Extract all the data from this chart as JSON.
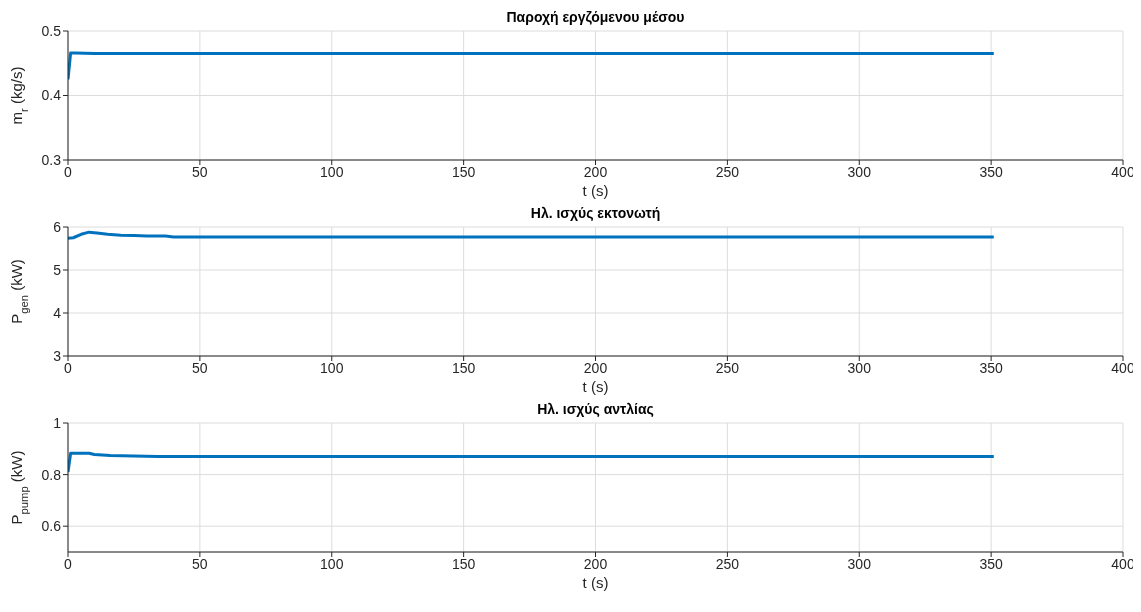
{
  "chart_data": [
    {
      "type": "line",
      "title": "Παροχή εργζόμενου μέσου",
      "xlabel": "t (s)",
      "ylabel": "m$_{r}$ (kg/s)",
      "xlim": [
        0,
        400
      ],
      "xticks": [
        0,
        50,
        100,
        150,
        200,
        250,
        300,
        350,
        400
      ],
      "ylim": [
        0.3,
        0.5
      ],
      "yticks": [
        0.3,
        0.4,
        0.5
      ],
      "grid": true,
      "series": [
        {
          "color": "#0072bd",
          "x": [
            0,
            1,
            3,
            10,
            50,
            100,
            150,
            200,
            250,
            300,
            351
          ],
          "values": [
            0.425,
            0.466,
            0.466,
            0.465,
            0.465,
            0.465,
            0.465,
            0.465,
            0.465,
            0.465,
            0.465
          ]
        }
      ]
    },
    {
      "type": "line",
      "title": "Ηλ. ισχύς εκτονωτή",
      "xlabel": "t (s)",
      "ylabel": "P$_{gen}$ (kW)",
      "xlim": [
        0,
        400
      ],
      "xticks": [
        0,
        50,
        100,
        150,
        200,
        250,
        300,
        350,
        400
      ],
      "ylim": [
        3,
        6
      ],
      "yticks": [
        3,
        4,
        5,
        6
      ],
      "grid": true,
      "series": [
        {
          "color": "#0072bd",
          "x": [
            0,
            2,
            5,
            8,
            11,
            15,
            20,
            25,
            30,
            37,
            40,
            100,
            200,
            300,
            351
          ],
          "values": [
            5.74,
            5.75,
            5.83,
            5.88,
            5.86,
            5.83,
            5.81,
            5.8,
            5.79,
            5.79,
            5.77,
            5.77,
            5.77,
            5.77,
            5.77
          ]
        }
      ]
    },
    {
      "type": "line",
      "title": "Ηλ. ισχύς αντλίας",
      "xlabel": "t (s)",
      "ylabel": "P$_{pump}$ (kW)",
      "xlim": [
        0,
        400
      ],
      "xticks": [
        0,
        50,
        100,
        150,
        200,
        250,
        300,
        350,
        400
      ],
      "ylim": [
        0.5,
        1
      ],
      "yticks": [
        0.6,
        0.8,
        1
      ],
      "grid": true,
      "series": [
        {
          "color": "#0072bd",
          "x": [
            0,
            1,
            8,
            10,
            16,
            34,
            100,
            200,
            300,
            351
          ],
          "values": [
            0.81,
            0.883,
            0.883,
            0.878,
            0.874,
            0.87,
            0.87,
            0.87,
            0.87,
            0.87
          ]
        }
      ]
    }
  ]
}
